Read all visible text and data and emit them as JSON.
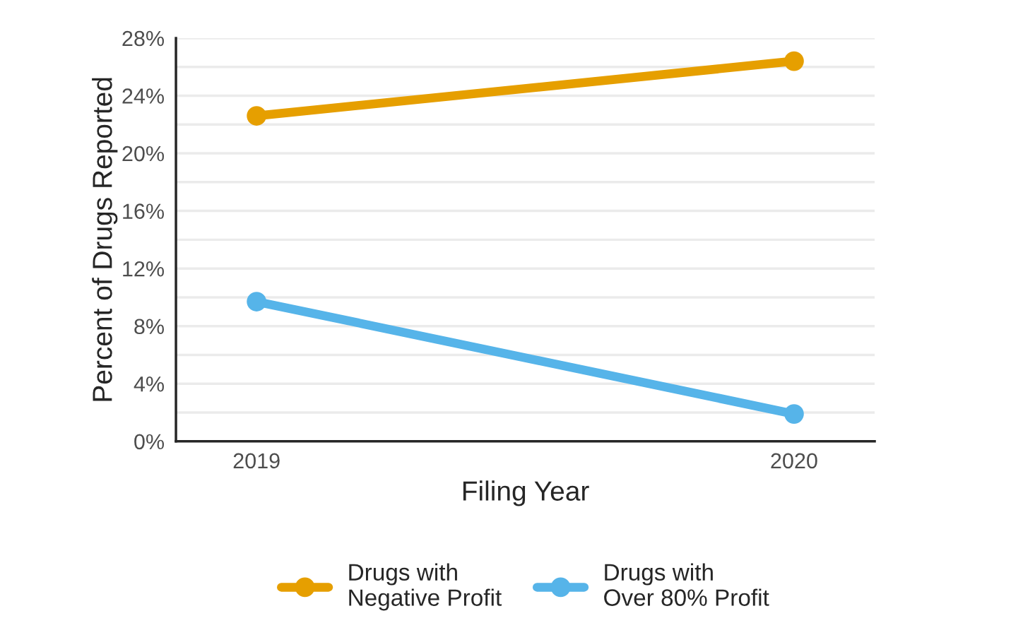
{
  "chart_data": {
    "type": "line",
    "xlabel": "Filing Year",
    "ylabel": "Percent of Drugs Reported",
    "categories": [
      "2019",
      "2020"
    ],
    "series": [
      {
        "name": "Drugs with\nNegative Profit",
        "color": "#e69f00",
        "values": [
          22.6,
          26.4
        ]
      },
      {
        "name": "Drugs with\nOver 80% Profit",
        "color": "#56b4e9",
        "values": [
          9.7,
          1.9
        ]
      }
    ],
    "ylim": [
      0,
      28
    ],
    "yticks": [
      {
        "value": 0,
        "label": "0%"
      },
      {
        "value": 2,
        "label": null
      },
      {
        "value": 4,
        "label": "4%"
      },
      {
        "value": 6,
        "label": null
      },
      {
        "value": 8,
        "label": "8%"
      },
      {
        "value": 10,
        "label": null
      },
      {
        "value": 12,
        "label": "12%"
      },
      {
        "value": 14,
        "label": null
      },
      {
        "value": 16,
        "label": "16%"
      },
      {
        "value": 18,
        "label": null
      },
      {
        "value": 20,
        "label": "20%"
      },
      {
        "value": 22,
        "label": null
      },
      {
        "value": 24,
        "label": "24%"
      },
      {
        "value": 26,
        "label": null
      },
      {
        "value": 28,
        "label": "28%"
      }
    ],
    "grid": "y",
    "legend": "bottom",
    "marker": "circle",
    "line_style": "solid"
  }
}
